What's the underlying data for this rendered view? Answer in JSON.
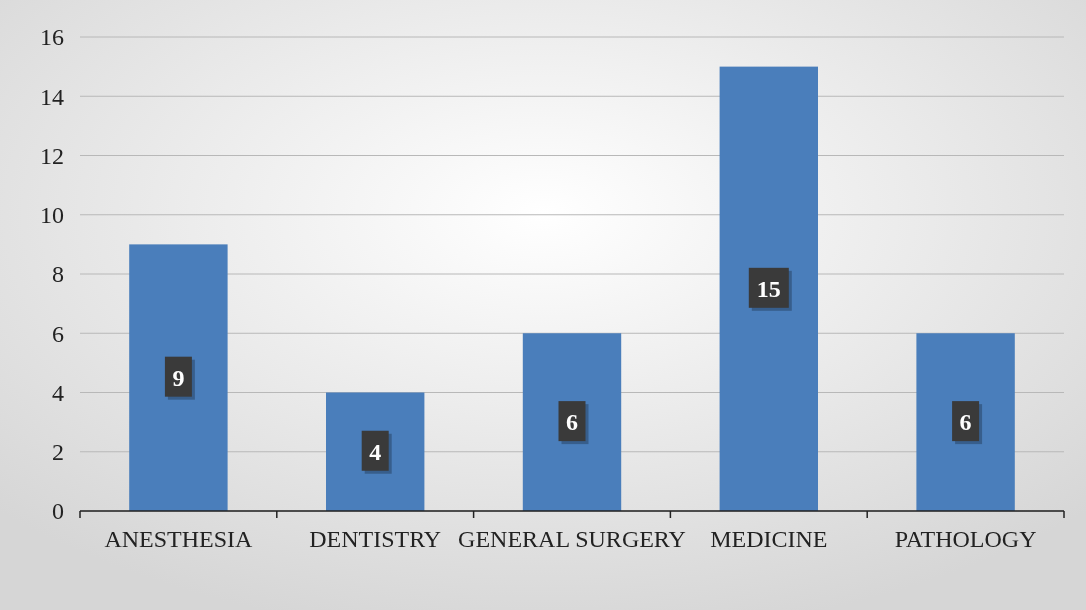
{
  "chart_data": {
    "type": "bar",
    "categories": [
      "ANESTHESIA",
      "DENTISTRY",
      "GENERAL SURGERY",
      "MEDICINE",
      "PATHOLOGY"
    ],
    "values": [
      9,
      4,
      6,
      15,
      6
    ],
    "color": "#4a7ebb",
    "ylim": [
      0,
      16
    ],
    "yticks": [
      0,
      2,
      4,
      6,
      8,
      10,
      12,
      14,
      16
    ],
    "grid": "y",
    "data_labels": true
  }
}
